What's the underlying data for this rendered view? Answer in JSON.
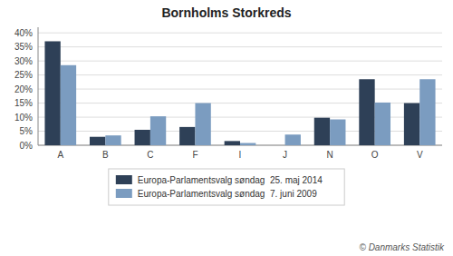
{
  "chart_data": {
    "type": "bar",
    "title": "Bornholms Storkreds",
    "categories": [
      "A",
      "B",
      "C",
      "F",
      "I",
      "J",
      "N",
      "O",
      "V"
    ],
    "series": [
      {
        "name": "Europa-Parlamentsvalg søndag  25. maj 2014",
        "color": "#2E4057",
        "values": [
          37.0,
          3.0,
          5.5,
          6.5,
          1.5,
          0.0,
          9.8,
          23.5,
          15.0
        ]
      },
      {
        "name": "Europa-Parlamentsvalg søndag  7. juni 2009",
        "color": "#7B9CC0",
        "values": [
          28.5,
          3.5,
          10.3,
          15.0,
          0.8,
          3.8,
          9.2,
          15.2,
          23.5
        ]
      }
    ],
    "ylim": [
      0,
      42
    ],
    "yticks": [
      {
        "value": 0,
        "label": "0%"
      },
      {
        "value": 5,
        "label": "5%"
      },
      {
        "value": 10,
        "label": "10%"
      },
      {
        "value": 15,
        "label": "15%"
      },
      {
        "value": 20,
        "label": "20%"
      },
      {
        "value": 25,
        "label": "25%"
      },
      {
        "value": 30,
        "label": "30%"
      },
      {
        "value": 35,
        "label": "35%"
      },
      {
        "value": 40,
        "label": "40%"
      }
    ],
    "grid": true,
    "legend": "bottom",
    "annotations": [
      "© Danmarks Statistik"
    ]
  }
}
